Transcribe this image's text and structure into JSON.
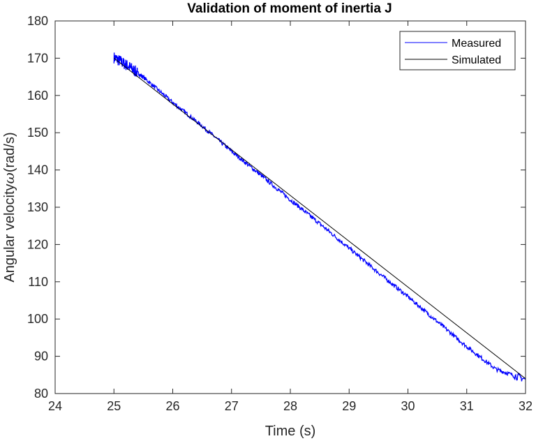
{
  "chart_data": {
    "type": "line",
    "title": "Validation of moment of inertia J",
    "xlabel": "Time (s)",
    "ylabel_prefix": "Angular velocity",
    "ylabel_symbol": "ω",
    "ylabel_suffix": "(rad/s)",
    "xlim": [
      24,
      32
    ],
    "ylim": [
      80,
      180
    ],
    "xticks": [
      24,
      25,
      26,
      27,
      28,
      29,
      30,
      31,
      32
    ],
    "yticks": [
      80,
      90,
      100,
      110,
      120,
      130,
      140,
      150,
      160,
      170,
      180
    ],
    "grid": false,
    "legend_position": "top-right",
    "series": [
      {
        "name": "Measured",
        "color": "#0000ff",
        "x": [
          25.0,
          25.25,
          25.5,
          26.0,
          26.5,
          27.0,
          27.5,
          28.0,
          28.5,
          29.0,
          29.5,
          30.0,
          30.5,
          31.0,
          31.5,
          32.0
        ],
        "y": [
          170.2,
          167.8,
          164.9,
          158.1,
          151.8,
          145.0,
          138.6,
          132.0,
          125.6,
          119.0,
          112.4,
          106.0,
          99.3,
          92.6,
          86.5,
          83.8
        ]
      },
      {
        "name": "Simulated",
        "color": "#000000",
        "x": [
          25.0,
          32.0
        ],
        "y": [
          170.0,
          84.0
        ]
      }
    ]
  }
}
